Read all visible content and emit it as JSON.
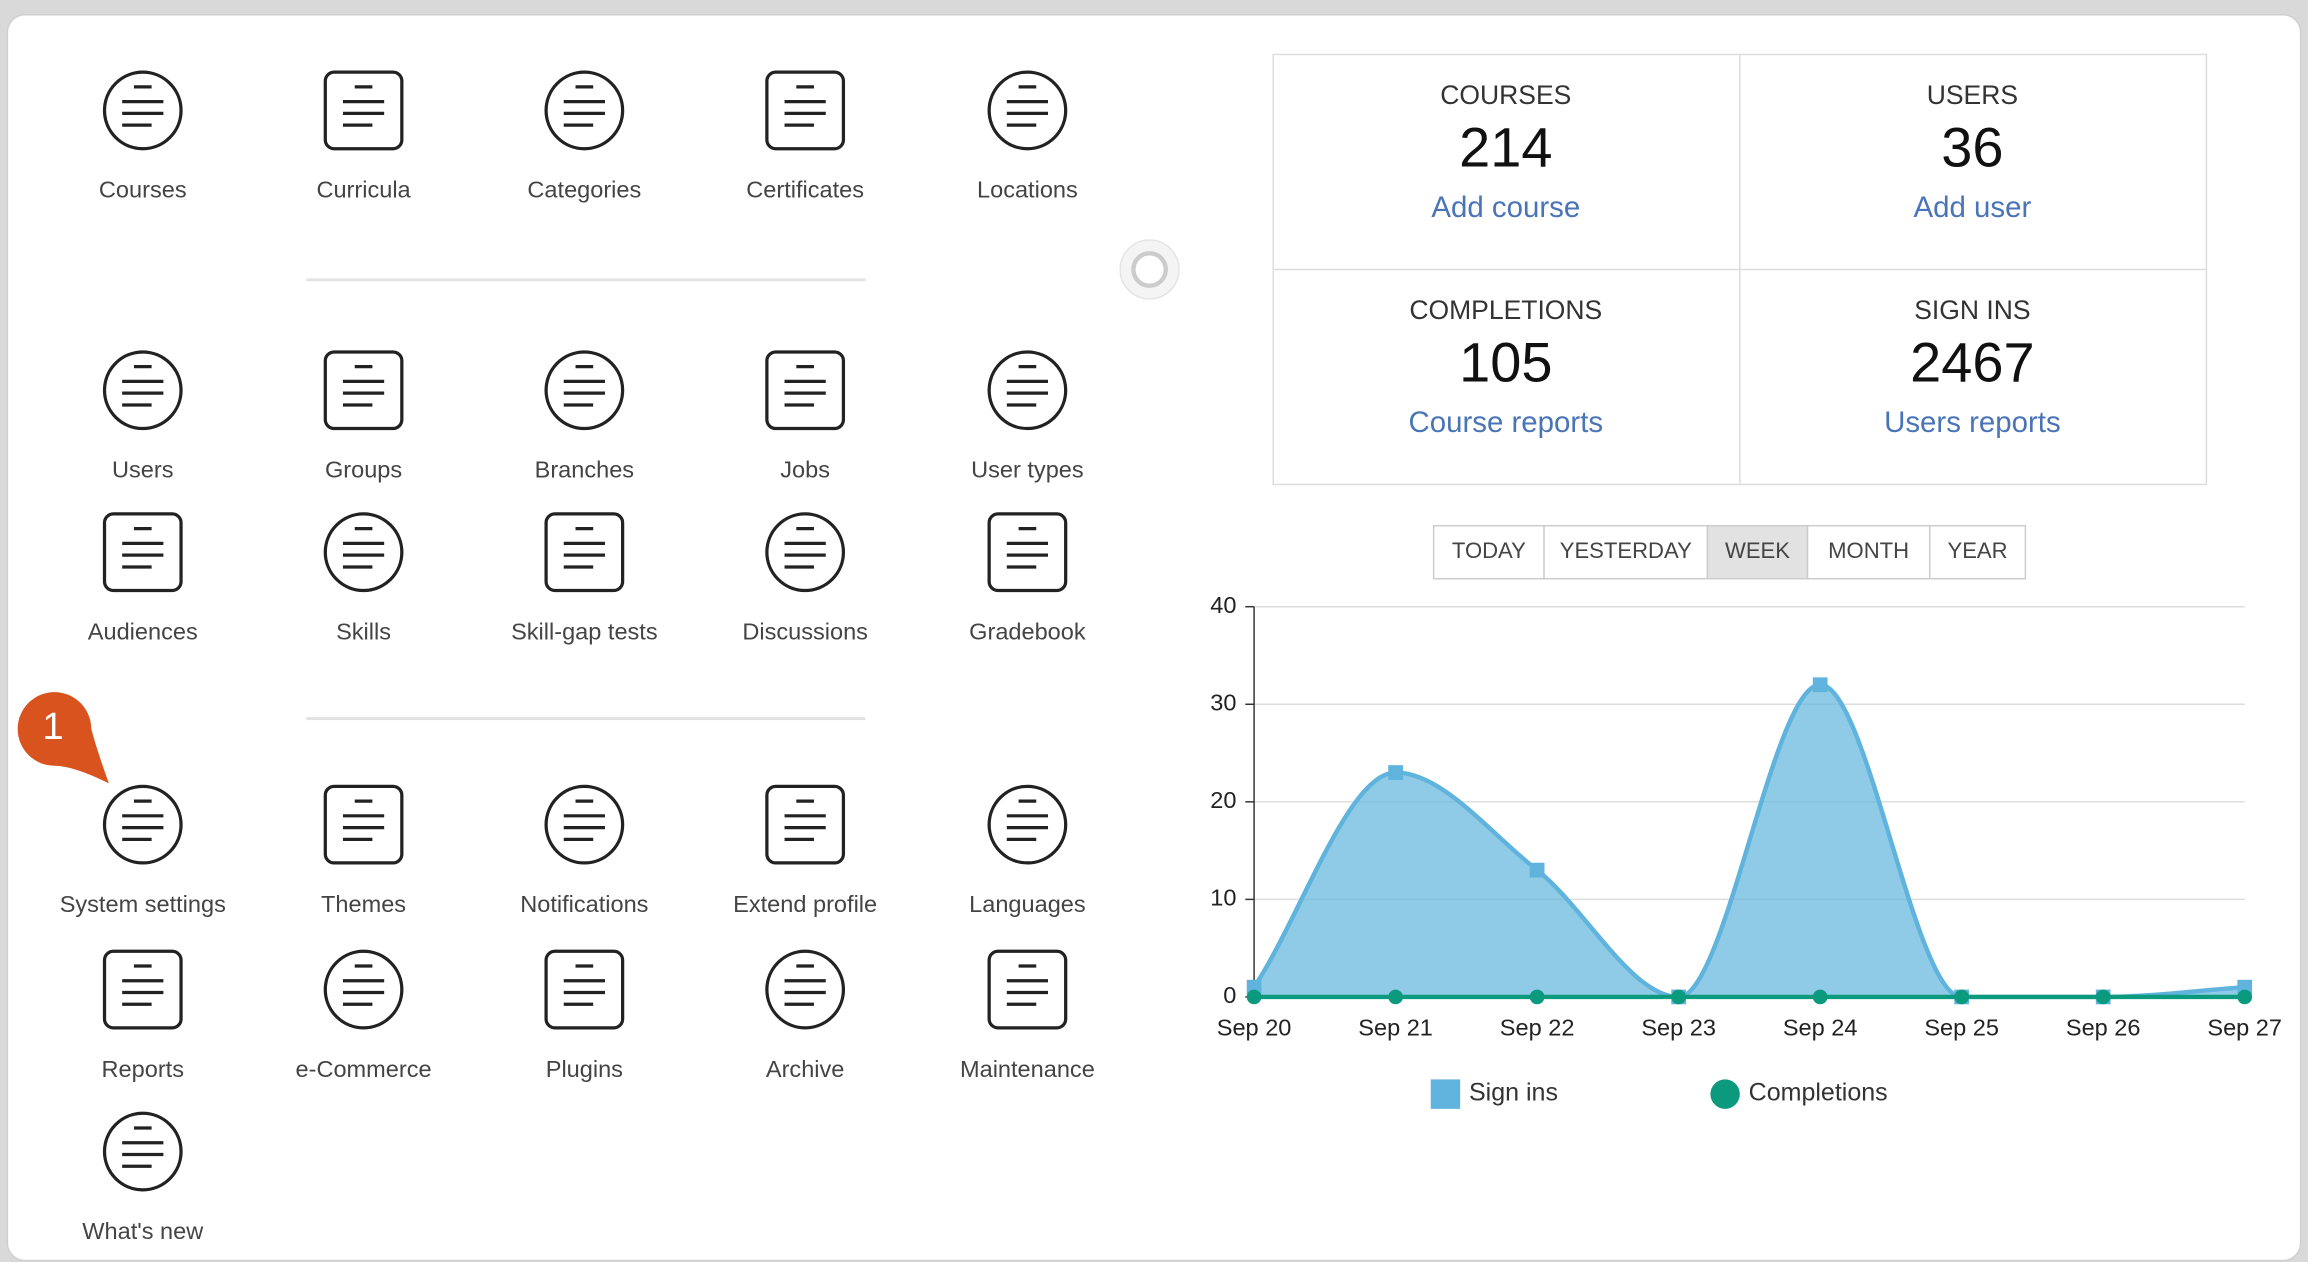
{
  "tools": {
    "sections": [
      [
        "Courses",
        "Curricula",
        "Categories",
        "Certificates",
        "Locations"
      ],
      [
        "Users",
        "Groups",
        "Branches",
        "Jobs",
        "User types",
        "Audiences",
        "Skills",
        "Skill-gap tests",
        "Discussions",
        "Gradebook"
      ],
      [
        "System settings",
        "Themes",
        "Notifications",
        "Extend profile",
        "Languages",
        "Reports",
        "e-Commerce",
        "Plugins",
        "Archive",
        "Maintenance",
        "What's new"
      ]
    ]
  },
  "badge": "1",
  "stats": [
    {
      "label": "COURSES",
      "value": 214,
      "link": "Add course"
    },
    {
      "label": "USERS",
      "value": 36,
      "link": "Add user"
    },
    {
      "label": "COMPLETIONS",
      "value": 105,
      "link": "Course reports"
    },
    {
      "label": "SIGN INS",
      "value": 2467,
      "link": "Users reports"
    }
  ],
  "ranges": {
    "options": [
      "TODAY",
      "YESTERDAY",
      "WEEK",
      "MONTH",
      "YEAR"
    ],
    "active": "WEEK"
  },
  "chart_data": {
    "type": "area",
    "categories": [
      "Sep 20",
      "Sep 21",
      "Sep 22",
      "Sep 23",
      "Sep 24",
      "Sep 25",
      "Sep 26",
      "Sep 27"
    ],
    "series": [
      {
        "name": "Sign ins",
        "color": "#5fb3dc",
        "values": [
          1,
          23,
          13,
          0,
          32,
          0,
          0,
          1
        ]
      },
      {
        "name": "Completions",
        "color": "#0c9a7e",
        "values": [
          0,
          0,
          0,
          0,
          0,
          0,
          0,
          0
        ]
      }
    ],
    "ylim": [
      0,
      40
    ],
    "yticks": [
      0,
      10,
      20,
      30,
      40
    ],
    "grid": true
  }
}
